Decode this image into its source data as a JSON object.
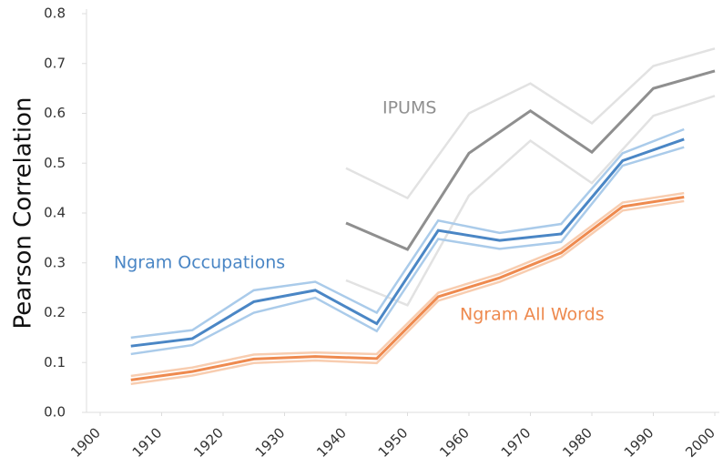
{
  "chart_data": {
    "type": "line",
    "y_label": "Pearson Correlation",
    "xlim": [
      1900,
      2000
    ],
    "xticks": [
      1900,
      1910,
      1920,
      1930,
      1940,
      1950,
      1960,
      1970,
      1980,
      1990,
      2000
    ],
    "ylim": [
      0,
      0.8
    ],
    "yticks": [
      {
        "value": 0,
        "label": "0.0"
      },
      0.1,
      0.2,
      0.3,
      0.4,
      0.5,
      0.6,
      0.7,
      0.8
    ],
    "series": [
      {
        "name": "IPUMS",
        "color": "#8f8f8f",
        "band_color": "#e2e2e2",
        "x": [
          1940,
          1950,
          1960,
          1970,
          1980,
          1990,
          2000
        ],
        "values": [
          0.38,
          0.327,
          0.52,
          0.605,
          0.522,
          0.65,
          0.685
        ],
        "upper": [
          0.49,
          0.43,
          0.6,
          0.66,
          0.58,
          0.695,
          0.73
        ],
        "lower": [
          0.265,
          0.215,
          0.435,
          0.545,
          0.46,
          0.595,
          0.635
        ]
      },
      {
        "name": "Ngram Occupations",
        "color": "#4a86c5",
        "band_color": "#aacbea",
        "x": [
          1905,
          1915,
          1925,
          1935,
          1945,
          1955,
          1965,
          1975,
          1985,
          1995
        ],
        "values": [
          0.133,
          0.148,
          0.222,
          0.245,
          0.178,
          0.365,
          0.345,
          0.358,
          0.505,
          0.548
        ],
        "upper": [
          0.15,
          0.165,
          0.245,
          0.262,
          0.2,
          0.385,
          0.36,
          0.378,
          0.52,
          0.568
        ],
        "lower": [
          0.117,
          0.135,
          0.2,
          0.23,
          0.163,
          0.348,
          0.328,
          0.342,
          0.495,
          0.532
        ]
      },
      {
        "name": "Ngram All Words",
        "color": "#ee8a4f",
        "band_color": "#f8cdb0",
        "x": [
          1905,
          1915,
          1925,
          1935,
          1945,
          1955,
          1965,
          1975,
          1985,
          1995
        ],
        "values": [
          0.065,
          0.082,
          0.107,
          0.112,
          0.108,
          0.232,
          0.27,
          0.32,
          0.413,
          0.432
        ],
        "upper": [
          0.073,
          0.09,
          0.116,
          0.12,
          0.117,
          0.24,
          0.278,
          0.328,
          0.421,
          0.44
        ],
        "lower": [
          0.057,
          0.074,
          0.099,
          0.104,
          0.099,
          0.224,
          0.262,
          0.312,
          0.405,
          0.424
        ]
      }
    ]
  }
}
